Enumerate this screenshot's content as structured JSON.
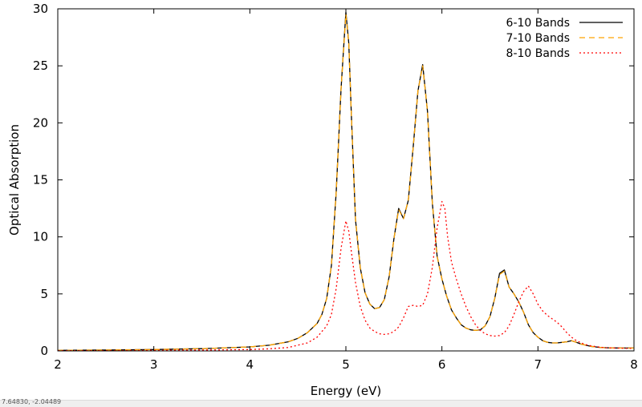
{
  "chart_data": {
    "type": "line",
    "title": "",
    "xlabel": "Energy (eV)",
    "ylabel": "Optical Absorption",
    "xlim": [
      2,
      8
    ],
    "ylim": [
      0,
      30
    ],
    "xticks": [
      2,
      3,
      4,
      5,
      6,
      7,
      8
    ],
    "yticks": [
      0,
      5,
      10,
      15,
      20,
      25,
      30
    ],
    "grid": false,
    "legend_position": "top-right",
    "series": [
      {
        "name": "6-10 Bands",
        "color": "#000000",
        "dash": "solid",
        "x": [
          2.0,
          2.5,
          3.0,
          3.5,
          4.0,
          4.2,
          4.4,
          4.5,
          4.6,
          4.7,
          4.75,
          4.8,
          4.85,
          4.9,
          4.95,
          5.0,
          5.03,
          5.06,
          5.1,
          5.15,
          5.2,
          5.25,
          5.3,
          5.35,
          5.4,
          5.45,
          5.5,
          5.55,
          5.6,
          5.65,
          5.7,
          5.75,
          5.8,
          5.85,
          5.9,
          5.95,
          6.0,
          6.05,
          6.1,
          6.15,
          6.2,
          6.25,
          6.3,
          6.35,
          6.4,
          6.45,
          6.5,
          6.55,
          6.6,
          6.65,
          6.7,
          6.75,
          6.8,
          6.85,
          6.9,
          6.95,
          7.0,
          7.05,
          7.1,
          7.15,
          7.2,
          7.25,
          7.3,
          7.35,
          7.4,
          7.45,
          7.5,
          7.55,
          7.6,
          7.65,
          7.7,
          7.75,
          7.8,
          7.85,
          7.9,
          7.95,
          8.0
        ],
        "y": [
          0.05,
          0.08,
          0.12,
          0.2,
          0.35,
          0.5,
          0.8,
          1.1,
          1.6,
          2.4,
          3.2,
          4.6,
          7.5,
          14.0,
          23.0,
          29.7,
          27.0,
          20.0,
          11.5,
          7.3,
          5.1,
          4.1,
          3.7,
          3.8,
          4.5,
          6.5,
          9.8,
          12.5,
          11.6,
          13.2,
          17.8,
          22.8,
          25.1,
          21.0,
          13.0,
          8.3,
          6.3,
          4.8,
          3.6,
          2.9,
          2.3,
          2.0,
          1.85,
          1.8,
          1.85,
          2.2,
          3.0,
          4.6,
          6.8,
          7.1,
          5.6,
          5.0,
          4.3,
          3.4,
          2.3,
          1.6,
          1.2,
          0.9,
          0.75,
          0.7,
          0.7,
          0.75,
          0.8,
          0.9,
          0.75,
          0.6,
          0.5,
          0.4,
          0.35,
          0.3,
          0.28,
          0.27,
          0.26,
          0.25,
          0.25,
          0.25,
          0.25
        ]
      },
      {
        "name": "7-10 Bands",
        "color": "#ffa500",
        "dash": "dashed",
        "x": [
          2.0,
          2.5,
          3.0,
          3.5,
          4.0,
          4.2,
          4.4,
          4.5,
          4.6,
          4.7,
          4.75,
          4.8,
          4.85,
          4.9,
          4.95,
          5.0,
          5.03,
          5.06,
          5.1,
          5.15,
          5.2,
          5.25,
          5.3,
          5.35,
          5.4,
          5.45,
          5.5,
          5.55,
          5.6,
          5.65,
          5.7,
          5.75,
          5.8,
          5.85,
          5.9,
          5.95,
          6.0,
          6.05,
          6.1,
          6.15,
          6.2,
          6.25,
          6.3,
          6.35,
          6.4,
          6.45,
          6.5,
          6.55,
          6.6,
          6.65,
          6.7,
          6.75,
          6.8,
          6.85,
          6.9,
          6.95,
          7.0,
          7.05,
          7.1,
          7.15,
          7.2,
          7.25,
          7.3,
          7.35,
          7.4,
          7.45,
          7.5,
          7.55,
          7.6,
          7.65,
          7.7,
          7.75,
          7.8,
          7.85,
          7.9,
          7.95,
          8.0
        ],
        "y": [
          0.05,
          0.08,
          0.12,
          0.2,
          0.35,
          0.5,
          0.8,
          1.1,
          1.6,
          2.4,
          3.2,
          4.6,
          7.5,
          14.0,
          23.0,
          29.5,
          27.0,
          20.0,
          11.5,
          7.3,
          5.1,
          4.1,
          3.7,
          3.8,
          4.5,
          6.5,
          9.8,
          12.4,
          11.6,
          13.2,
          17.8,
          22.8,
          25.0,
          21.0,
          13.0,
          8.3,
          6.3,
          4.8,
          3.6,
          2.9,
          2.3,
          2.0,
          1.85,
          1.8,
          1.85,
          2.2,
          3.0,
          4.6,
          6.7,
          7.0,
          5.6,
          5.0,
          4.3,
          3.4,
          2.3,
          1.6,
          1.2,
          0.9,
          0.75,
          0.7,
          0.7,
          0.75,
          0.8,
          0.9,
          0.75,
          0.6,
          0.5,
          0.4,
          0.35,
          0.3,
          0.28,
          0.27,
          0.26,
          0.25,
          0.25,
          0.25,
          0.25
        ]
      },
      {
        "name": "8-10 Bands",
        "color": "#ff0000",
        "dash": "dotted",
        "x": [
          2.0,
          2.5,
          3.0,
          3.5,
          4.0,
          4.2,
          4.4,
          4.6,
          4.7,
          4.8,
          4.85,
          4.9,
          4.95,
          5.0,
          5.03,
          5.06,
          5.1,
          5.15,
          5.2,
          5.25,
          5.3,
          5.35,
          5.4,
          5.45,
          5.5,
          5.55,
          5.6,
          5.65,
          5.7,
          5.75,
          5.8,
          5.85,
          5.9,
          5.95,
          6.0,
          6.03,
          6.06,
          6.1,
          6.15,
          6.2,
          6.25,
          6.3,
          6.35,
          6.4,
          6.45,
          6.5,
          6.55,
          6.6,
          6.65,
          6.7,
          6.75,
          6.8,
          6.85,
          6.9,
          6.95,
          7.0,
          7.05,
          7.1,
          7.15,
          7.2,
          7.25,
          7.3,
          7.35,
          7.4,
          7.45,
          7.5,
          7.55,
          7.6,
          7.65,
          7.7,
          7.75,
          7.8,
          7.85,
          7.9,
          7.95,
          8.0
        ],
        "y": [
          0.02,
          0.03,
          0.05,
          0.08,
          0.12,
          0.18,
          0.3,
          0.7,
          1.2,
          2.2,
          3.2,
          5.5,
          9.0,
          11.4,
          10.5,
          8.5,
          6.0,
          3.9,
          2.7,
          2.0,
          1.7,
          1.5,
          1.45,
          1.5,
          1.7,
          2.1,
          2.9,
          3.9,
          4.0,
          3.9,
          4.0,
          5.0,
          7.3,
          10.8,
          13.1,
          12.5,
          10.0,
          7.8,
          6.3,
          5.0,
          3.9,
          3.0,
          2.3,
          1.8,
          1.5,
          1.35,
          1.3,
          1.35,
          1.6,
          2.2,
          3.2,
          4.3,
          5.2,
          5.7,
          5.0,
          4.1,
          3.5,
          3.1,
          2.8,
          2.5,
          2.1,
          1.6,
          1.2,
          0.9,
          0.7,
          0.55,
          0.45,
          0.38,
          0.32,
          0.28,
          0.26,
          0.25,
          0.24,
          0.23,
          0.22,
          0.22
        ]
      }
    ]
  },
  "status_bar": {
    "coordinates": "7.64830, -2.04489"
  }
}
